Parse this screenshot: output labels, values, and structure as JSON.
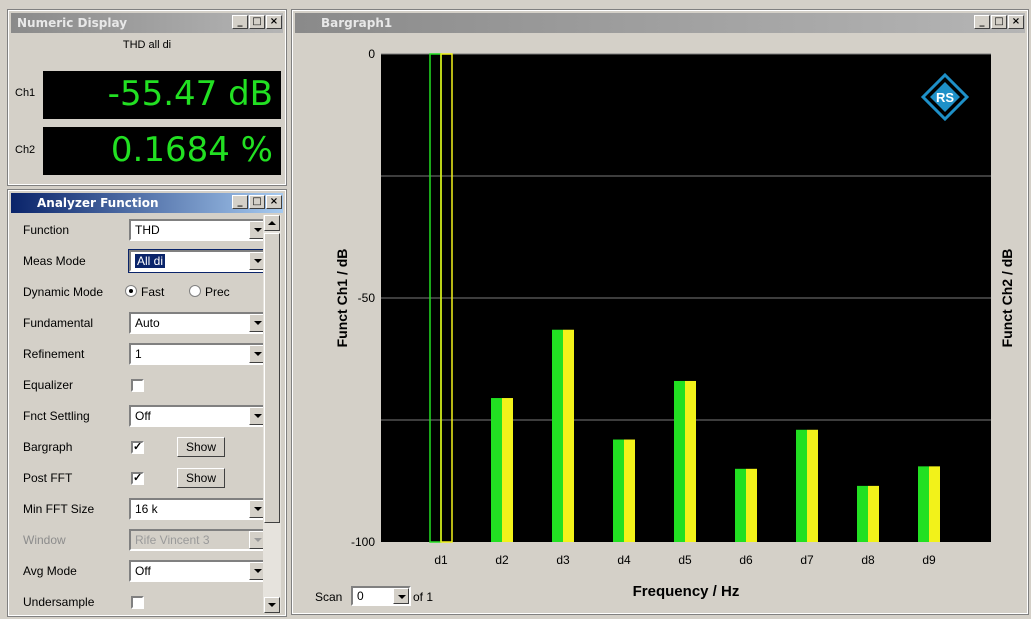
{
  "numeric_display": {
    "title": "Numeric Display",
    "function_label": "THD all di",
    "ch1_label": "Ch1",
    "ch1_value": "-55.47 dB",
    "ch2_label": "Ch2",
    "ch2_value": "0.1684 %"
  },
  "analyzer": {
    "title": "Analyzer Function",
    "function": {
      "label": "Function",
      "value": "THD"
    },
    "meas_mode": {
      "label": "Meas Mode",
      "value": "All di"
    },
    "dynamic_mode": {
      "label": "Dynamic Mode",
      "option1": "Fast",
      "option2": "Prec",
      "selected": "Fast"
    },
    "fundamental": {
      "label": "Fundamental",
      "value": "Auto"
    },
    "refinement": {
      "label": "Refinement",
      "value": "1"
    },
    "equalizer": {
      "label": "Equalizer",
      "checked": false
    },
    "fnct_settling": {
      "label": "Fnct Settling",
      "value": "Off"
    },
    "bargraph": {
      "label": "Bargraph",
      "checked": true,
      "button": "Show"
    },
    "post_fft": {
      "label": "Post FFT",
      "checked": true,
      "button": "Show"
    },
    "min_fft_size": {
      "label": "Min FFT Size",
      "value": "16 k"
    },
    "window": {
      "label": "Window",
      "value": "Rife Vincent 3"
    },
    "avg_mode": {
      "label": "Avg Mode",
      "value": "Off"
    },
    "undersample": {
      "label": "Undersample",
      "checked": false
    }
  },
  "bargraph": {
    "title": "Bargraph1",
    "logo_text": "RS",
    "scan_label": "Scan",
    "scan_value": "0",
    "scan_of": "of 1"
  },
  "chart_data": {
    "type": "bar",
    "categories": [
      "d1",
      "d2",
      "d3",
      "d4",
      "d5",
      "d6",
      "d7",
      "d8",
      "d9"
    ],
    "series": [
      {
        "name": "Ch1",
        "color": "#22e022",
        "values": [
          0,
          -70.5,
          -56.5,
          -79,
          -67,
          -85,
          -77,
          -88.5,
          -84.5
        ]
      },
      {
        "name": "Ch2",
        "color": "#f2f21a",
        "values": [
          0,
          -70.5,
          -56.5,
          -79,
          -67,
          -85,
          -77,
          -88.5,
          -84.5
        ]
      }
    ],
    "outlined_categories": [
      "d1"
    ],
    "xlabel": "Frequency / Hz",
    "ylabel": "Funct Ch1 / dB",
    "ylabel_right": "Funct Ch2 / dB",
    "ylim": [
      -100,
      0
    ],
    "yticks": [
      0,
      -50,
      -100
    ],
    "grid": true,
    "colors": {
      "background": "#000000",
      "grid": "#7a7a7a"
    }
  }
}
